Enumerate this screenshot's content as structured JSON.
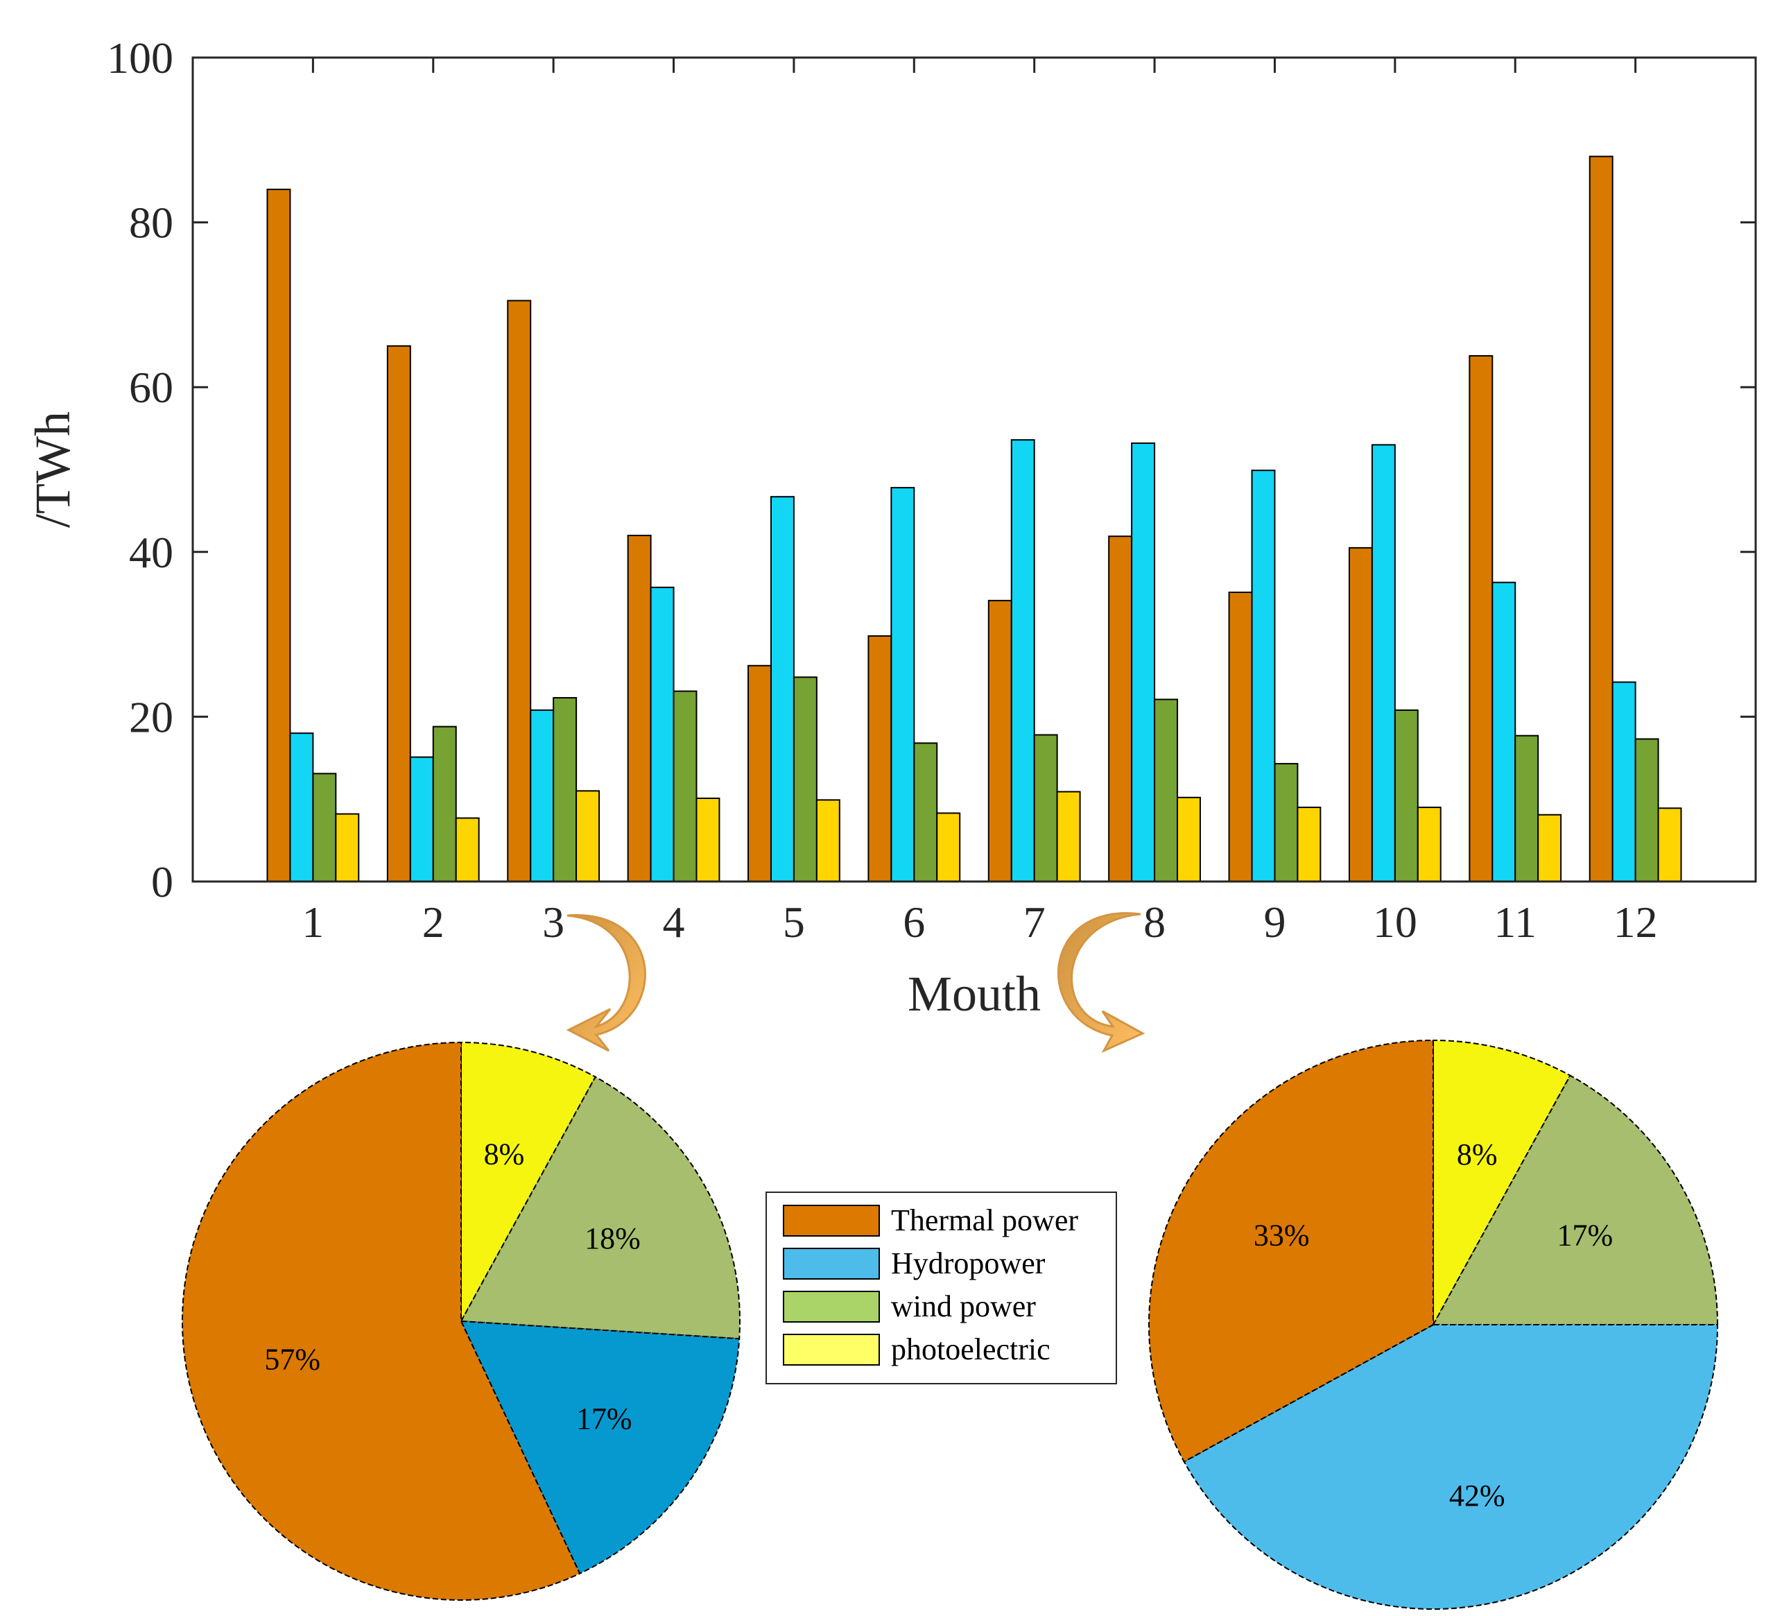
{
  "chart_data": [
    {
      "type": "bar",
      "categories": [
        "1",
        "2",
        "3",
        "4",
        "5",
        "6",
        "7",
        "8",
        "9",
        "10",
        "11",
        "12"
      ],
      "xlabel": "Mouth",
      "ylabel": "/TWh",
      "ylim": [
        0,
        100
      ],
      "yticks": [
        "0",
        "20",
        "40",
        "60",
        "80",
        "100"
      ],
      "series": [
        {
          "name": "Thermal power",
          "color": "#D97A00",
          "values": [
            84,
            65,
            70.5,
            42,
            26.2,
            29.8,
            34.1,
            41.9,
            35.1,
            40.5,
            63.8,
            88
          ]
        },
        {
          "name": "Hydropower",
          "color": "#12D6F4",
          "values": [
            18,
            15.1,
            20.8,
            35.7,
            46.7,
            47.8,
            53.6,
            53.2,
            49.9,
            53,
            36.3,
            24.2
          ]
        },
        {
          "name": "wind power",
          "color": "#77A234",
          "values": [
            13.1,
            18.8,
            22.3,
            23.1,
            24.8,
            16.8,
            17.8,
            22.1,
            14.3,
            20.8,
            17.7,
            17.3
          ]
        },
        {
          "name": "photoelectric",
          "color": "#FFD500",
          "values": [
            8.2,
            7.7,
            11,
            10.1,
            9.9,
            8.3,
            10.9,
            10.2,
            9,
            9,
            8.1,
            8.9
          ]
        }
      ]
    },
    {
      "type": "pie",
      "slices": [
        {
          "label": "photoelectric",
          "value": 8,
          "text": "8%",
          "color": "#F5F510"
        },
        {
          "label": "wind power",
          "value": 18,
          "text": "18%",
          "color": "#A6BE6D"
        },
        {
          "label": "Hydropower",
          "value": 17,
          "text": "17%",
          "color": "#0699CF"
        },
        {
          "label": "Thermal power",
          "value": 57,
          "text": "57%",
          "color": "#DB7900"
        }
      ]
    },
    {
      "type": "pie",
      "slices": [
        {
          "label": "photoelectric",
          "value": 8,
          "text": "8%",
          "color": "#F5F510"
        },
        {
          "label": "wind power",
          "value": 17,
          "text": "17%",
          "color": "#A6BE6D"
        },
        {
          "label": "Hydropower",
          "value": 42,
          "text": "42%",
          "color": "#4DBCEB"
        },
        {
          "label": "Thermal power",
          "value": 33,
          "text": "33%",
          "color": "#DB7900"
        }
      ]
    }
  ],
  "legend": [
    {
      "label": "Thermal power",
      "color": "#DB7900"
    },
    {
      "label": "Hydropower",
      "color": "#4DBCEB"
    },
    {
      "label": "wind power",
      "color": "#ABD468"
    },
    {
      "label": "photoelectric",
      "color": "#FFFF66"
    }
  ]
}
